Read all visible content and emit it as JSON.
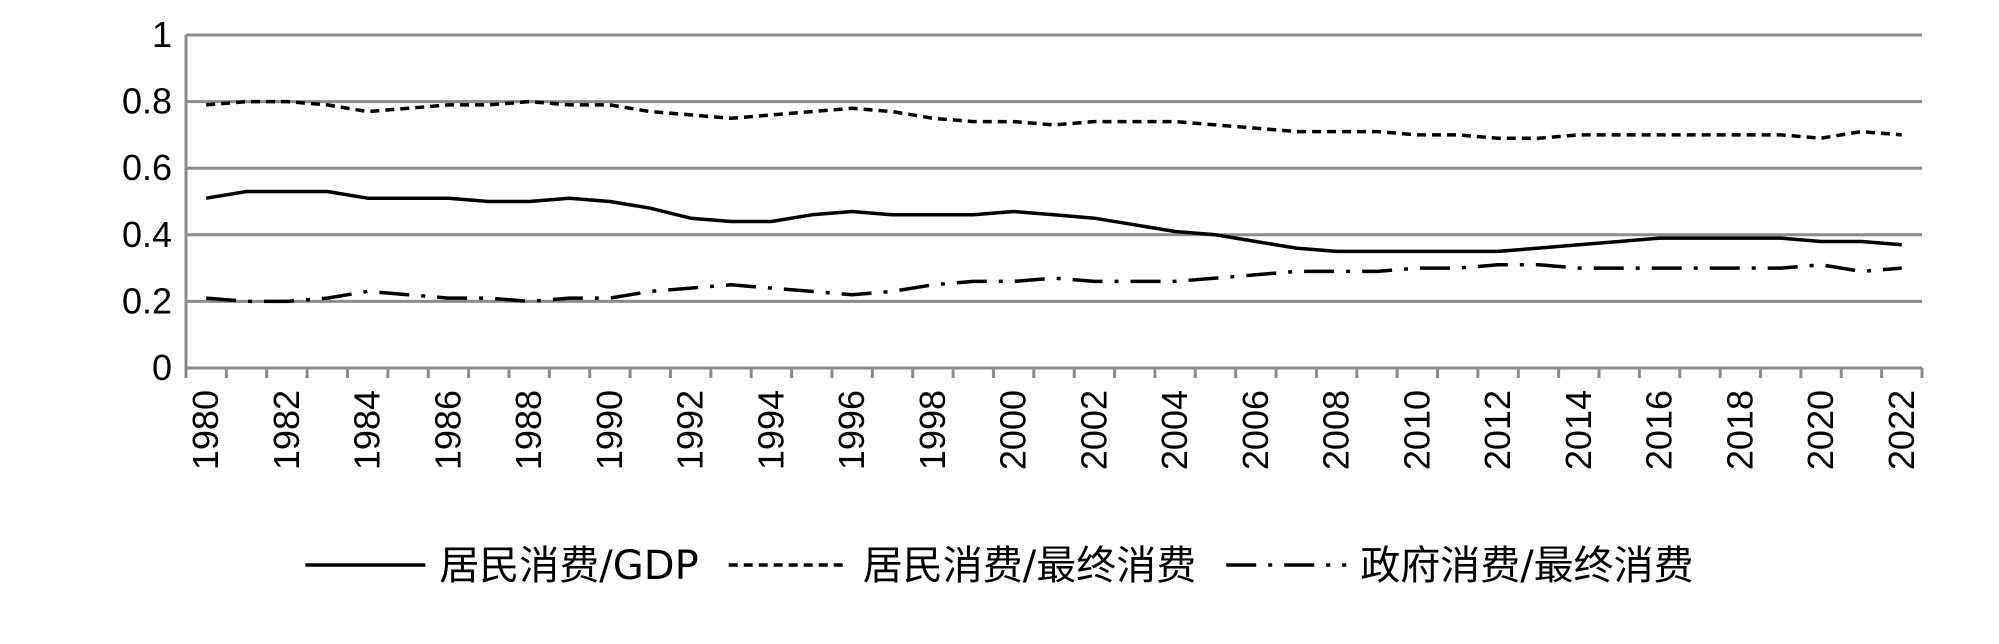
{
  "chart_data": {
    "type": "line",
    "title": "",
    "xlabel": "",
    "ylabel": "",
    "ylim": [
      0,
      1
    ],
    "yticks": [
      "0",
      "0.2",
      "0.4",
      "0.6",
      "0.8",
      "1"
    ],
    "x": [
      "1980",
      "1981",
      "1982",
      "1983",
      "1984",
      "1985",
      "1986",
      "1987",
      "1988",
      "1989",
      "1990",
      "1991",
      "1992",
      "1993",
      "1994",
      "1995",
      "1996",
      "1997",
      "1998",
      "1999",
      "2000",
      "2001",
      "2002",
      "2003",
      "2004",
      "2005",
      "2006",
      "2007",
      "2008",
      "2009",
      "2010",
      "2011",
      "2012",
      "2013",
      "2014",
      "2015",
      "2016",
      "2017",
      "2018",
      "2019",
      "2020",
      "2021",
      "2022"
    ],
    "x_tick_labels": [
      "1980",
      "1982",
      "1984",
      "1986",
      "1988",
      "1990",
      "1992",
      "1994",
      "1996",
      "1998",
      "2000",
      "2002",
      "2004",
      "2006",
      "2008",
      "2010",
      "2012",
      "2014",
      "2016",
      "2018",
      "2020",
      "2022"
    ],
    "grid": true,
    "legend_position": "bottom",
    "series": [
      {
        "name": "居民消费/GDP",
        "dash": "solid",
        "values": [
          0.51,
          0.53,
          0.53,
          0.53,
          0.51,
          0.51,
          0.51,
          0.5,
          0.5,
          0.51,
          0.5,
          0.48,
          0.45,
          0.44,
          0.44,
          0.46,
          0.47,
          0.46,
          0.46,
          0.46,
          0.47,
          0.46,
          0.45,
          0.43,
          0.41,
          0.4,
          0.38,
          0.36,
          0.35,
          0.35,
          0.35,
          0.35,
          0.35,
          0.36,
          0.37,
          0.38,
          0.39,
          0.39,
          0.39,
          0.39,
          0.38,
          0.38,
          0.37
        ]
      },
      {
        "name": "居民消费/最终消费",
        "dash": "dashed",
        "values": [
          0.79,
          0.8,
          0.8,
          0.79,
          0.77,
          0.78,
          0.79,
          0.79,
          0.8,
          0.79,
          0.79,
          0.77,
          0.76,
          0.75,
          0.76,
          0.77,
          0.78,
          0.77,
          0.75,
          0.74,
          0.74,
          0.73,
          0.74,
          0.74,
          0.74,
          0.73,
          0.72,
          0.71,
          0.71,
          0.71,
          0.7,
          0.7,
          0.69,
          0.69,
          0.7,
          0.7,
          0.7,
          0.7,
          0.7,
          0.7,
          0.69,
          0.71,
          0.7
        ]
      },
      {
        "name": "政府消费/最终消费",
        "dash": "dash-dot",
        "values": [
          0.21,
          0.2,
          0.2,
          0.21,
          0.23,
          0.22,
          0.21,
          0.21,
          0.2,
          0.21,
          0.21,
          0.23,
          0.24,
          0.25,
          0.24,
          0.23,
          0.22,
          0.23,
          0.25,
          0.26,
          0.26,
          0.27,
          0.26,
          0.26,
          0.26,
          0.27,
          0.28,
          0.29,
          0.29,
          0.29,
          0.3,
          0.3,
          0.31,
          0.31,
          0.3,
          0.3,
          0.3,
          0.3,
          0.3,
          0.3,
          0.31,
          0.29,
          0.3
        ]
      }
    ]
  }
}
